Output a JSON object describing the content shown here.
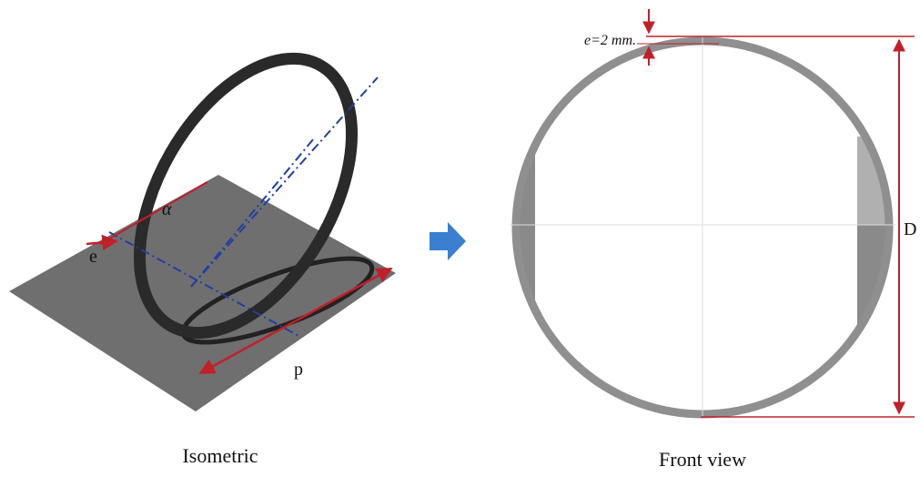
{
  "captions": {
    "left": "Isometric",
    "right": "Front view"
  },
  "labels": {
    "thickness": "e=2 mm.",
    "diameter": "D",
    "e": "e",
    "alpha": "α",
    "p": "p"
  }
}
